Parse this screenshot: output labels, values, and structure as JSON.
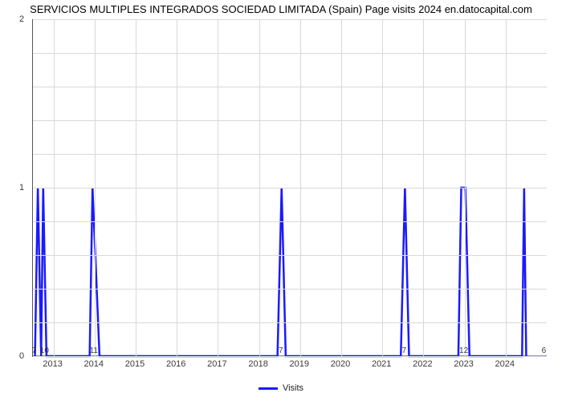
{
  "title": "SERVICIOS MULTIPLES INTEGRADOS SOCIEDAD LIMITADA (Spain) Page visits 2024 en.datocapital.com",
  "chart": {
    "type": "line",
    "x_range": [
      2012.5,
      2025.0
    ],
    "y_range": [
      0,
      2
    ],
    "x_axis_tick_years": [
      2013,
      2014,
      2015,
      2016,
      2017,
      2018,
      2019,
      2020,
      2021,
      2022,
      2023,
      2024
    ],
    "x_extra_upper_ticks": {
      "left": "7",
      "mid_left": "10",
      "at2014": "11",
      "at2018": "7",
      "at2021": "7",
      "at2023": "12",
      "right": "6"
    },
    "y_ticks": [
      0,
      1,
      2
    ],
    "grid_color": "#d9d9d9",
    "axis_color": "#555555",
    "background_color": "#ffffff",
    "tick_font_size": 11,
    "title_font_size": 13,
    "series": {
      "name": "Visits",
      "color": "#1a1aff",
      "stroke_width": 2.5,
      "points": [
        [
          2012.55,
          0
        ],
        [
          2012.62,
          1
        ],
        [
          2012.7,
          0
        ],
        [
          2012.75,
          1
        ],
        [
          2012.83,
          0
        ],
        [
          2013.88,
          0
        ],
        [
          2013.95,
          1
        ],
        [
          2014.12,
          0
        ],
        [
          2018.45,
          0
        ],
        [
          2018.55,
          1
        ],
        [
          2018.65,
          0
        ],
        [
          2021.45,
          0
        ],
        [
          2021.55,
          1
        ],
        [
          2021.65,
          0
        ],
        [
          2022.85,
          0
        ],
        [
          2022.92,
          1
        ],
        [
          2023.02,
          1
        ],
        [
          2023.12,
          0
        ],
        [
          2024.4,
          0
        ],
        [
          2024.45,
          1
        ],
        [
          2024.5,
          0
        ]
      ]
    },
    "legend_label": "Visits"
  }
}
